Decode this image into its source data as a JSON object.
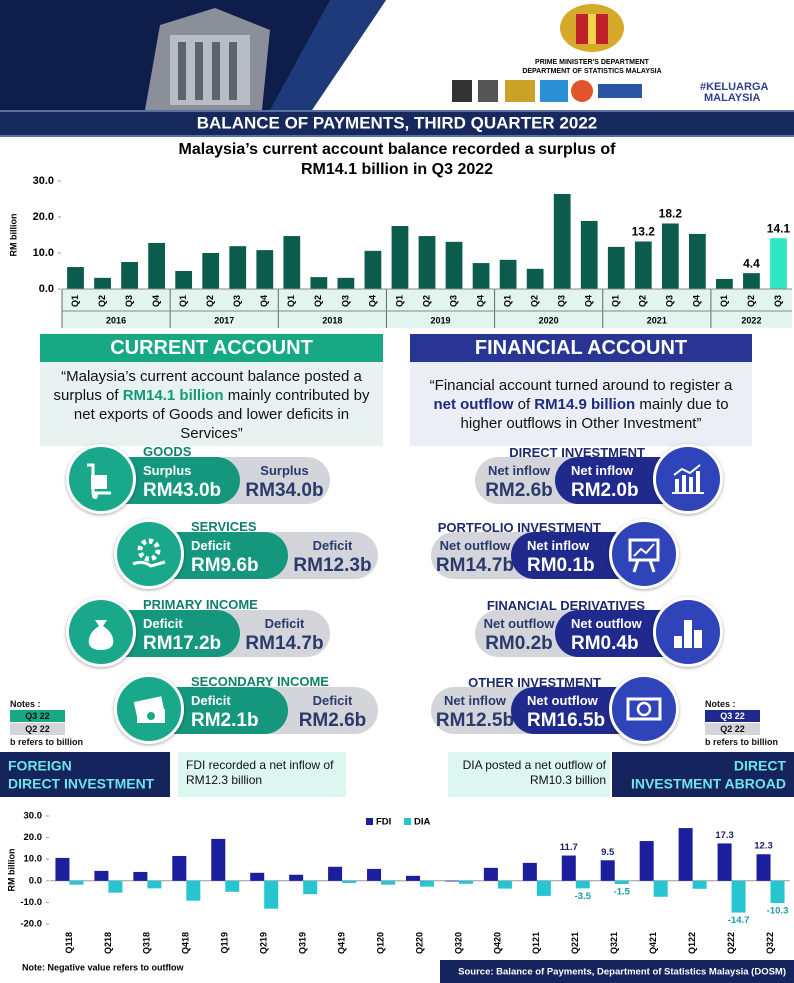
{
  "header": {
    "org_lines": [
      "PRIME MINISTER'S DEPARTMENT",
      "DEPARTMENT OF STATISTICS MALAYSIA"
    ],
    "logo_text": [
      "#KELUARGA",
      "MALAYSIA"
    ],
    "title": "BALANCE OF PAYMENTS, THIRD QUARTER 2022"
  },
  "subtitle": [
    "Malaysia’s current account balance recorded a surplus of",
    "RM14.1 billion in Q3 2022"
  ],
  "chart_data": [
    {
      "type": "bar",
      "y_label": "RM billion",
      "categories": [
        "Q1",
        "Q2",
        "Q3",
        "Q4",
        "Q1",
        "Q2",
        "Q3",
        "Q4",
        "Q1",
        "Q2",
        "Q3",
        "Q4",
        "Q1",
        "Q2",
        "Q3",
        "Q4",
        "Q1",
        "Q2",
        "Q3",
        "Q4",
        "Q1",
        "Q2",
        "Q3",
        "Q4",
        "Q1",
        "Q2",
        "Q3"
      ],
      "years": [
        "2016",
        "2017",
        "2018",
        "2019",
        "2020",
        "2021",
        "2022"
      ],
      "values": [
        6.1,
        3.1,
        7.5,
        12.8,
        5.0,
        10.0,
        11.9,
        10.8,
        14.7,
        3.3,
        3.1,
        10.6,
        17.5,
        14.7,
        13.1,
        7.2,
        8.1,
        5.6,
        26.4,
        18.9,
        11.7,
        13.2,
        18.2,
        15.3,
        2.8,
        4.4,
        14.1
      ],
      "value_labels": [
        null,
        null,
        null,
        null,
        null,
        null,
        null,
        null,
        null,
        null,
        null,
        null,
        null,
        null,
        null,
        null,
        null,
        null,
        null,
        null,
        null,
        "13.2",
        "18.2",
        null,
        null,
        "4.4",
        "14.1"
      ],
      "colors": [
        "#0b5c4d",
        "#0b5c4d",
        "#0b5c4d",
        "#0b5c4d",
        "#0b5c4d",
        "#0b5c4d",
        "#0b5c4d",
        "#0b5c4d",
        "#0b5c4d",
        "#0b5c4d",
        "#0b5c4d",
        "#0b5c4d",
        "#0b5c4d",
        "#0b5c4d",
        "#0b5c4d",
        "#0b5c4d",
        "#0b5c4d",
        "#0b5c4d",
        "#0b5c4d",
        "#0b5c4d",
        "#0b5c4d",
        "#0b5c4d",
        "#0b5c4d",
        "#0b5c4d",
        "#0b5c4d",
        "#0b5c4d",
        "#2ee8c4"
      ],
      "ylim": [
        0,
        30
      ],
      "yticks": [
        {
          "value": 0,
          "label": "0.0"
        },
        {
          "value": 10,
          "label": "10.0"
        },
        {
          "value": 20,
          "label": "20.0"
        },
        {
          "value": 30,
          "label": "30.0"
        }
      ],
      "grid": false
    },
    {
      "type": "bar",
      "y_label": "RM billion",
      "categories": [
        "Q118",
        "Q218",
        "Q318",
        "Q418",
        "Q119",
        "Q219",
        "Q319",
        "Q419",
        "Q120",
        "Q220",
        "Q320",
        "Q420",
        "Q121",
        "Q221",
        "Q321",
        "Q421",
        "Q122",
        "Q222",
        "Q322"
      ],
      "series": [
        {
          "name": "FDI",
          "color": "#1b1f9e",
          "values": [
            10.6,
            4.6,
            4.1,
            11.5,
            19.4,
            3.7,
            2.8,
            6.5,
            5.5,
            2.3,
            -0.3,
            6.0,
            8.3,
            11.7,
            9.5,
            18.4,
            24.4,
            17.3,
            12.3
          ],
          "value_labels": [
            null,
            null,
            null,
            null,
            null,
            null,
            null,
            null,
            null,
            null,
            null,
            null,
            null,
            "11.7",
            "9.5",
            null,
            null,
            "17.3",
            "12.3"
          ]
        },
        {
          "name": "DIA",
          "color": "#27c4d2",
          "values": [
            -1.8,
            -5.5,
            -3.5,
            -9.2,
            -5.1,
            -12.9,
            -6.2,
            -1.0,
            -1.8,
            -2.7,
            -1.4,
            -3.6,
            -7.0,
            -3.5,
            -1.5,
            -7.4,
            -3.7,
            -14.7,
            -10.3
          ],
          "value_labels": [
            null,
            null,
            null,
            null,
            null,
            null,
            null,
            null,
            null,
            null,
            null,
            null,
            null,
            "-3.5",
            "-1.5",
            null,
            null,
            "-14.7",
            "-10.3"
          ]
        }
      ],
      "ylim": [
        -20,
        30
      ],
      "yticks": [
        {
          "value": 30,
          "label": "30.0"
        },
        {
          "value": 20,
          "label": "20.0"
        },
        {
          "value": 10,
          "label": "10.0"
        },
        {
          "value": 0,
          "label": "0.0"
        },
        {
          "value": -10,
          "label": "-10.0"
        },
        {
          "value": -20,
          "label": "-20.0"
        }
      ],
      "legend": "top",
      "grid": false
    }
  ],
  "current_account": {
    "heading": "CURRENT ACCOUNT",
    "quote": [
      "“Malaysia’s current account balance posted a surplus of ",
      "RM14.1 billion",
      " mainly contributed by net exports of Goods and lower deficits in Services”"
    ],
    "items": [
      {
        "title": "GOODS",
        "q3": {
          "status": "Surplus",
          "amount": "RM43.0b"
        },
        "q2": {
          "status": "Surplus",
          "amount": "RM34.0b"
        }
      },
      {
        "title": "SERVICES",
        "q3": {
          "status": "Deficit",
          "amount": "RM9.6b"
        },
        "q2": {
          "status": "Deficit",
          "amount": "RM12.3b"
        }
      },
      {
        "title": "PRIMARY INCOME",
        "q3": {
          "status": "Deficit",
          "amount": "RM17.2b"
        },
        "q2": {
          "status": "Deficit",
          "amount": "RM14.7b"
        }
      },
      {
        "title": "SECONDARY INCOME",
        "q3": {
          "status": "Deficit",
          "amount": "RM2.1b"
        },
        "q2": {
          "status": "Deficit",
          "amount": "RM2.6b"
        }
      }
    ],
    "notes": {
      "title": "Notes :",
      "q3": "Q3 22",
      "q2": "Q2 22",
      "unit": "b refers to billion"
    }
  },
  "financial_account": {
    "heading": "FINANCIAL ACCOUNT",
    "quote": [
      "“Financial account turned around to register a ",
      "net outflow",
      " of ",
      "RM14.9 billion",
      " mainly due to higher outflows in Other Investment”"
    ],
    "items": [
      {
        "title": "DIRECT INVESTMENT",
        "q3": {
          "status": "Net inflow",
          "amount": "RM2.0b"
        },
        "q2": {
          "status": "Net inflow",
          "amount": "RM2.6b"
        }
      },
      {
        "title": "PORTFOLIO INVESTMENT",
        "q3": {
          "status": "Net inflow",
          "amount": "RM0.1b"
        },
        "q2": {
          "status": "Net outflow",
          "amount": "RM14.7b"
        }
      },
      {
        "title": "FINANCIAL DERIVATIVES",
        "q3": {
          "status": "Net outflow",
          "amount": "RM0.4b"
        },
        "q2": {
          "status": "Net outflow",
          "amount": "RM0.2b"
        }
      },
      {
        "title": "OTHER INVESTMENT",
        "q3": {
          "status": "Net outflow",
          "amount": "RM16.5b"
        },
        "q2": {
          "status": "Net inflow",
          "amount": "RM12.5b"
        }
      }
    ],
    "notes": {
      "title": "Notes :",
      "q3": "Q3 22",
      "q2": "Q2 22",
      "unit": "b refers to billion"
    }
  },
  "direct_investment": {
    "fdi_label": [
      "FOREIGN",
      "DIRECT INVESTMENT"
    ],
    "fdi_text": "FDI recorded a net inflow of RM12.3 billion",
    "dia_text": "DIA posted a net outflow of RM10.3 billion",
    "dia_label": [
      "DIRECT",
      "INVESTMENT ABROAD"
    ]
  },
  "footer": {
    "note": "Note: Negative value refers to outflow",
    "source": "Source: Balance of Payments, Department of Statistics Malaysia (DOSM)"
  }
}
